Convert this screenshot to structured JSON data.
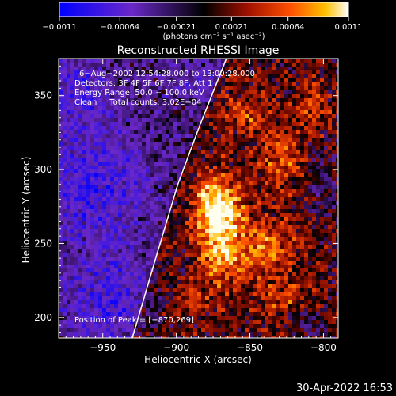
{
  "chart_data": {
    "type": "heatmap",
    "title": "Reconstructed RHESSI Image",
    "xlabel": "Heliocentric X (arcsec)",
    "ylabel": "Heliocentric Y (arcsec)",
    "xlim": [
      -980,
      -790
    ],
    "ylim": [
      186,
      375
    ],
    "x_ticks": [
      -950,
      -900,
      -850,
      -800
    ],
    "y_ticks": [
      200,
      250,
      300,
      350
    ],
    "x_tick_labels": [
      "−950",
      "−900",
      "−850",
      "−800"
    ],
    "y_tick_labels": [
      "200",
      "250",
      "300",
      "350"
    ],
    "colorbar": {
      "min": -0.0011,
      "max": 0.0011,
      "ticks": [
        -0.0011,
        -0.00064,
        -0.00021,
        0.00021,
        0.00064,
        0.0011
      ],
      "tick_labels": [
        "−0.0011",
        "−0.00064",
        "−0.00021",
        "0.00021",
        "0.00064",
        "0.0011"
      ],
      "unit_label": "(photons cm⁻² s⁻¹ asec⁻²)"
    },
    "annotations": [
      "6−Aug−2002 12:54:28.000 to 13:00:28.000",
      "Detectors: 3F 4F 5F 6F 7F 8F, Att 1",
      "Energy Range: 50.0 − 100.0 keV",
      "Clean     Total counts: 3.02E+04"
    ],
    "peak_label": "Position of Peak = [−870,269]",
    "peak": {
      "x": -870,
      "y": 269
    },
    "limb_curve": [
      {
        "x": -930,
        "y": 186
      },
      {
        "x": -914,
        "y": 240
      },
      {
        "x": -899,
        "y": 290
      },
      {
        "x": -884,
        "y": 330
      },
      {
        "x": -866,
        "y": 375
      }
    ],
    "sources": [
      {
        "x": -872,
        "y": 272,
        "sx": 11,
        "sy": 16,
        "amp": 1.05
      },
      {
        "x": -865,
        "y": 238,
        "sx": 15,
        "sy": 14,
        "amp": 0.45
      },
      {
        "x": -836,
        "y": 248,
        "sx": 13,
        "sy": 12,
        "amp": 0.42
      },
      {
        "x": -828,
        "y": 305,
        "sx": 10,
        "sy": 16,
        "amp": 0.38
      },
      {
        "x": -852,
        "y": 336,
        "sx": 11,
        "sy": 11,
        "amp": 0.32
      },
      {
        "x": -808,
        "y": 342,
        "sx": 8,
        "sy": 10,
        "amp": 0.35
      },
      {
        "x": -826,
        "y": 212,
        "sx": 12,
        "sy": 11,
        "amp": 0.33
      },
      {
        "x": -890,
        "y": 210,
        "sx": 10,
        "sy": 8,
        "amp": 0.22
      }
    ],
    "cold_regions": [
      {
        "x": -955,
        "y": 290,
        "sx": 25,
        "sy": 30,
        "amp": -0.45
      },
      {
        "x": -945,
        "y": 210,
        "sx": 22,
        "sy": 22,
        "amp": -0.4
      },
      {
        "x": -968,
        "y": 355,
        "sx": 15,
        "sy": 18,
        "amp": -0.35
      },
      {
        "x": -888,
        "y": 358,
        "sx": 10,
        "sy": 9,
        "amp": -0.25
      },
      {
        "x": -800,
        "y": 288,
        "sx": 10,
        "sy": 14,
        "amp": -0.25
      },
      {
        "x": -812,
        "y": 198,
        "sx": 10,
        "sy": 10,
        "amp": -0.22
      }
    ],
    "colors": {
      "limb": "#ffffff",
      "background": "#000000"
    }
  },
  "footer": {
    "timestamp": "30-Apr-2022 16:53"
  }
}
